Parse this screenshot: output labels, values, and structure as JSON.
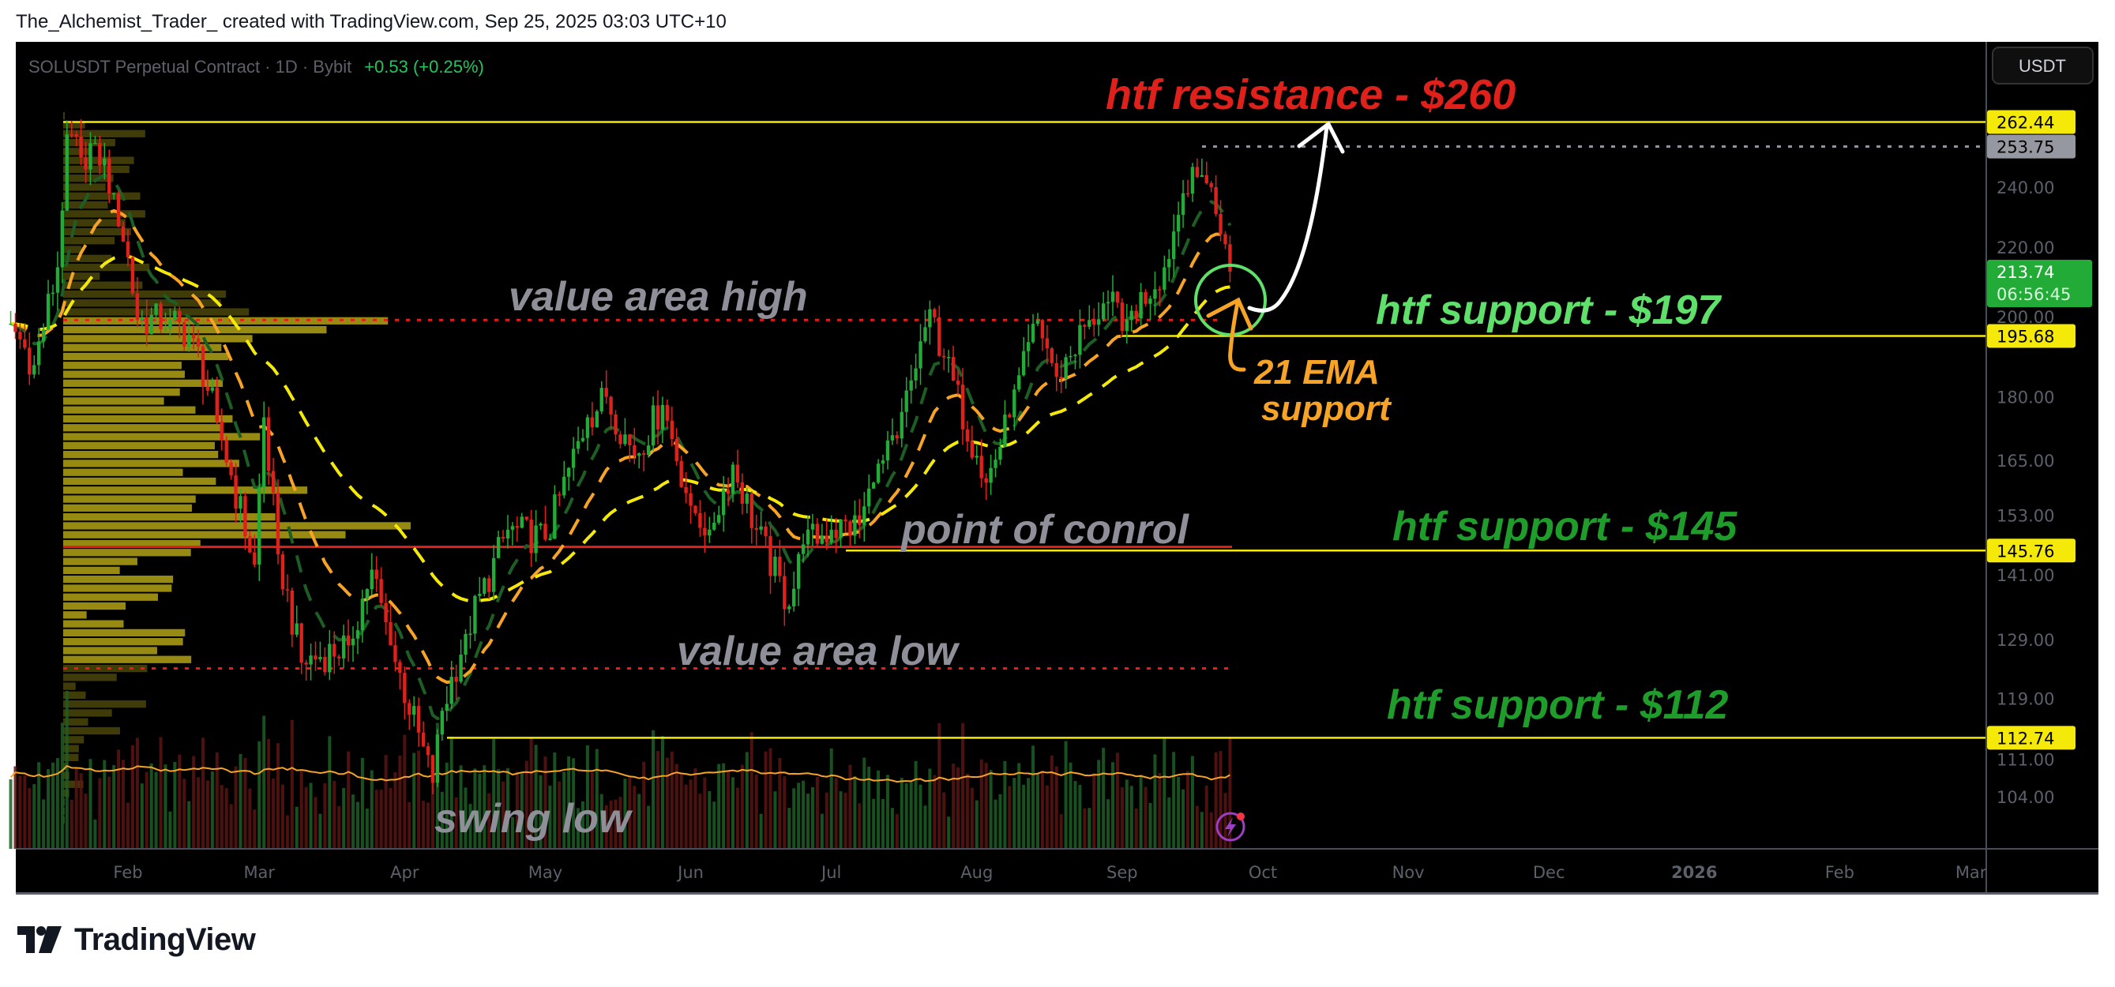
{
  "header": {
    "text": "The_Alchemist_Trader_ created with TradingView.com, Sep 25, 2025 03:03 UTC+10"
  },
  "legend": {
    "symbol": "SOLUSDT Perpetual Contract · 1D · Bybit",
    "change": "+0.53 (+0.25%)"
  },
  "currency_button": "USDT",
  "footer": {
    "brand": "TradingView"
  },
  "colors": {
    "up": "#22ab37",
    "down": "#e0201b",
    "level": "#f5e90a",
    "poc": "#e0201b",
    "ema21": "#f7a325",
    "ema_fast": "#1d5e24",
    "ema_slow": "#f5e90a",
    "price_badge": "#22ab37",
    "prev_high": "#9598a1"
  },
  "chart_data": {
    "type": "candlestick",
    "scale": "log",
    "ylim": [
      98,
      280
    ],
    "y_ticks": [
      "240.00",
      "220.00",
      "200.00",
      "180.00",
      "165.00",
      "153.00",
      "141.00",
      "129.00",
      "119.00",
      "111.00",
      "104.00"
    ],
    "x_ticks": [
      {
        "label": "Feb",
        "date": "2025-02-01"
      },
      {
        "label": "Mar",
        "date": "2025-03-01"
      },
      {
        "label": "Apr",
        "date": "2025-04-01"
      },
      {
        "label": "May",
        "date": "2025-05-01"
      },
      {
        "label": "Jun",
        "date": "2025-06-01"
      },
      {
        "label": "Jul",
        "date": "2025-07-01"
      },
      {
        "label": "Aug",
        "date": "2025-08-01"
      },
      {
        "label": "Sep",
        "date": "2025-09-01"
      },
      {
        "label": "Oct",
        "date": "2025-10-01"
      },
      {
        "label": "Nov",
        "date": "2025-11-01"
      },
      {
        "label": "Dec",
        "date": "2025-12-01"
      },
      {
        "label": "2026",
        "date": "2026-01-01",
        "bold": true
      },
      {
        "label": "Feb",
        "date": "2026-02-01"
      },
      {
        "label": "Mar",
        "date": "2026-03-01"
      }
    ],
    "close_path": [
      [
        "2025-01-07",
        199
      ],
      [
        "2025-01-12",
        188
      ],
      [
        "2025-01-17",
        215
      ],
      [
        "2025-01-19",
        258
      ],
      [
        "2025-01-22",
        250
      ],
      [
        "2025-01-25",
        255
      ],
      [
        "2025-01-29",
        238
      ],
      [
        "2025-02-01",
        218
      ],
      [
        "2025-02-03",
        200
      ],
      [
        "2025-02-10",
        200
      ],
      [
        "2025-02-15",
        195
      ],
      [
        "2025-02-20",
        174
      ],
      [
        "2025-02-28",
        143
      ],
      [
        "2025-03-02",
        175
      ],
      [
        "2025-03-05",
        145
      ],
      [
        "2025-03-10",
        125
      ],
      [
        "2025-03-20",
        128
      ],
      [
        "2025-03-25",
        142
      ],
      [
        "2025-03-29",
        128
      ],
      [
        "2025-04-07",
        106
      ],
      [
        "2025-04-09",
        117
      ],
      [
        "2025-04-14",
        130
      ],
      [
        "2025-04-23",
        150
      ],
      [
        "2025-05-01",
        148
      ],
      [
        "2025-05-10",
        175
      ],
      [
        "2025-05-14",
        180
      ],
      [
        "2025-05-20",
        166
      ],
      [
        "2025-05-26",
        178
      ],
      [
        "2025-06-01",
        155
      ],
      [
        "2025-06-05",
        150
      ],
      [
        "2025-06-10",
        164
      ],
      [
        "2025-06-15",
        150
      ],
      [
        "2025-06-22",
        135
      ],
      [
        "2025-06-25",
        147
      ],
      [
        "2025-07-01",
        150
      ],
      [
        "2025-07-07",
        151
      ],
      [
        "2025-07-10",
        160
      ],
      [
        "2025-07-15",
        170
      ],
      [
        "2025-07-22",
        203
      ],
      [
        "2025-07-25",
        190
      ],
      [
        "2025-08-01",
        166
      ],
      [
        "2025-08-03",
        160
      ],
      [
        "2025-08-08",
        175
      ],
      [
        "2025-08-14",
        200
      ],
      [
        "2025-08-18",
        185
      ],
      [
        "2025-08-25",
        200
      ],
      [
        "2025-08-29",
        205
      ],
      [
        "2025-09-02",
        200
      ],
      [
        "2025-09-10",
        215
      ],
      [
        "2025-09-14",
        238
      ],
      [
        "2025-09-18",
        244
      ],
      [
        "2025-09-20",
        240
      ],
      [
        "2025-09-22",
        225
      ],
      [
        "2025-09-24",
        213.74
      ]
    ],
    "levels": [
      {
        "price": 262.44,
        "label": "262.44",
        "kind": "level"
      },
      {
        "price": 253.75,
        "label": "253.75",
        "kind": "prev_high"
      },
      {
        "price": 195.68,
        "label": "195.68",
        "kind": "level"
      },
      {
        "price": 145.76,
        "label": "145.76",
        "kind": "level"
      },
      {
        "price": 112.74,
        "label": "112.74",
        "kind": "level"
      }
    ],
    "last_price": {
      "price": 213.74,
      "label": "213.74",
      "countdown": "06:56:45"
    },
    "value_area_high": 200,
    "value_area_low": 124,
    "point_of_control": 146.5,
    "annotations": {
      "resistance": "htf resistance - $260",
      "support_197": "htf support - $197",
      "ema": "21 EMA",
      "ema_sub": "support",
      "vah": "value area high",
      "poc": "point of conrol",
      "val": "value area low",
      "swing": "swing low",
      "support_145": "htf support - $145",
      "support_112": "htf support - $112"
    }
  }
}
